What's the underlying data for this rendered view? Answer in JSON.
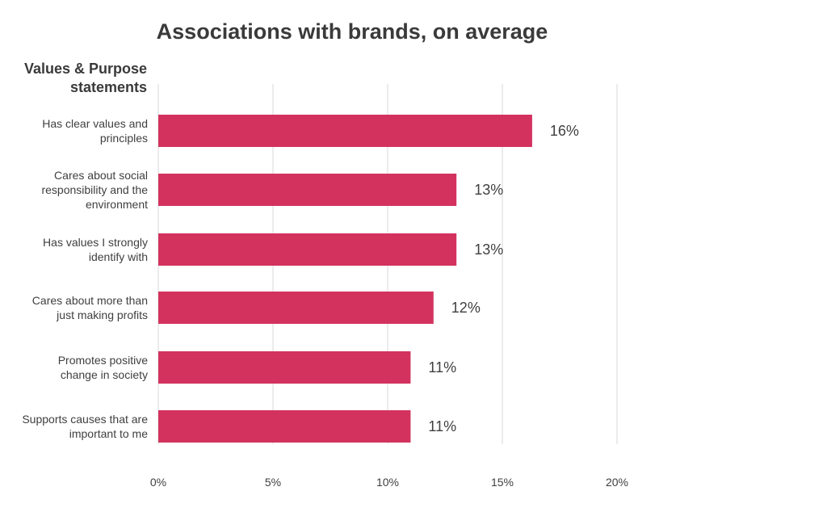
{
  "chart_data": {
    "type": "bar",
    "orientation": "horizontal",
    "title": "Associations with brands, on average",
    "ylabel": "Values & Purpose statements",
    "xlabel": "",
    "categories": [
      [
        "Has clear values and",
        "principles"
      ],
      [
        "Cares about social",
        "responsibility and the",
        "environment"
      ],
      [
        "Has values I strongly",
        "identify with"
      ],
      [
        "Cares about more than",
        "just making profits"
      ],
      [
        "Promotes positive",
        "change in society"
      ],
      [
        "Supports causes that are",
        "important to me"
      ]
    ],
    "values": [
      16.3,
      13.0,
      13.0,
      12.0,
      11.0,
      11.0
    ],
    "data_labels": [
      "16%",
      "13%",
      "13%",
      "12%",
      "11%",
      "11%"
    ],
    "xlim": [
      0,
      20
    ],
    "xticks": [
      0,
      5,
      10,
      15,
      20
    ],
    "xtick_labels": [
      "0%",
      "5%",
      "10%",
      "15%",
      "20%"
    ],
    "grid": true,
    "bar_color": "#d3325f",
    "grid_color": "#d9d9d9"
  }
}
